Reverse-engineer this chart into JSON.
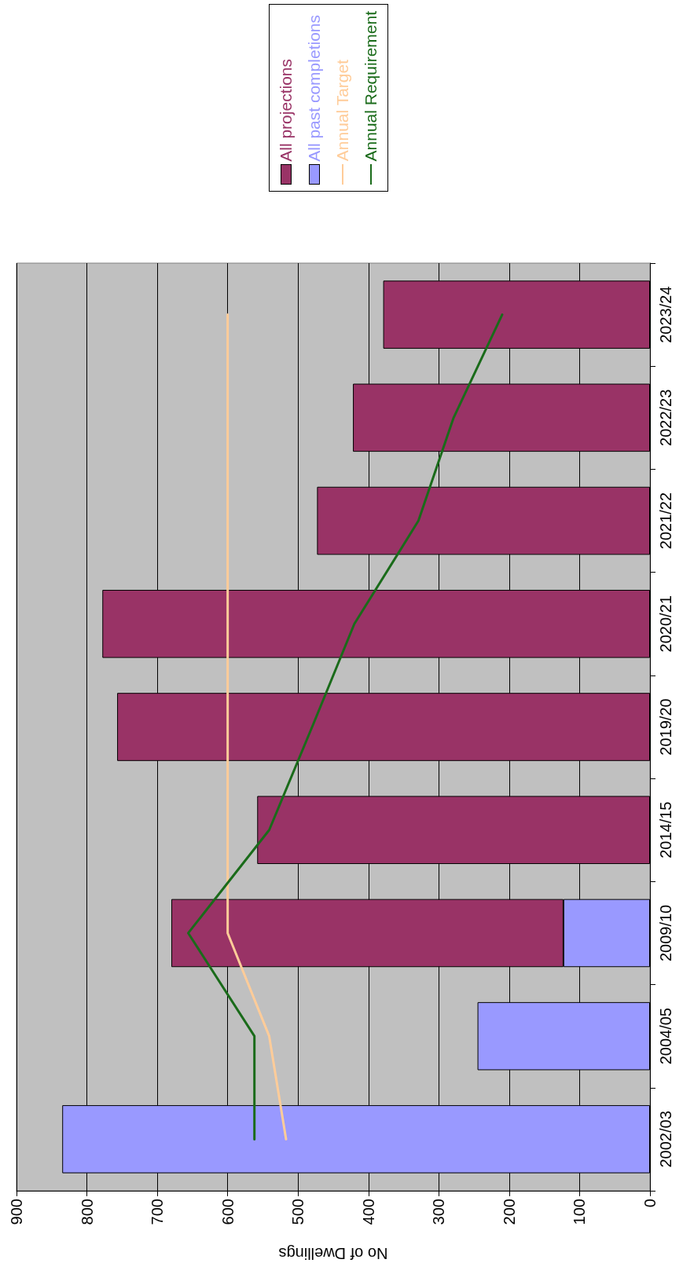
{
  "chart_data": {
    "type": "bar",
    "stacked": true,
    "orientation": "horizontal",
    "xlabel": "No of Dwellings",
    "categories": [
      "2023/24",
      "2022/23",
      "2021/22",
      "2020/21",
      "2019/20",
      "2014/15",
      "2009/10",
      "2004/05",
      "2002/03"
    ],
    "series": [
      {
        "name": "All past completions",
        "color": "#9999ff",
        "values": [
          0,
          0,
          0,
          0,
          0,
          0,
          123,
          245,
          835
        ]
      },
      {
        "name": "All projections",
        "color": "#993366",
        "values": [
          379,
          422,
          473,
          778,
          757,
          558,
          557,
          0,
          0
        ]
      },
      {
        "name": "Annual Target",
        "type": "line",
        "color": "#ffcc99",
        "values": [
          600,
          600,
          600,
          600,
          600,
          600,
          600,
          541,
          517
        ]
      },
      {
        "name": "Annual Requirement",
        "type": "line",
        "color": "#1a6b1a",
        "values": [
          210,
          279,
          329,
          420,
          480,
          541,
          656,
          562,
          562
        ]
      }
    ],
    "xlim": [
      900,
      0
    ],
    "xticks": [
      900,
      800,
      700,
      600,
      500,
      400,
      300,
      200,
      100,
      0
    ],
    "grid": "x",
    "legend": "top right",
    "marker": "none",
    "line_style": "solid"
  }
}
